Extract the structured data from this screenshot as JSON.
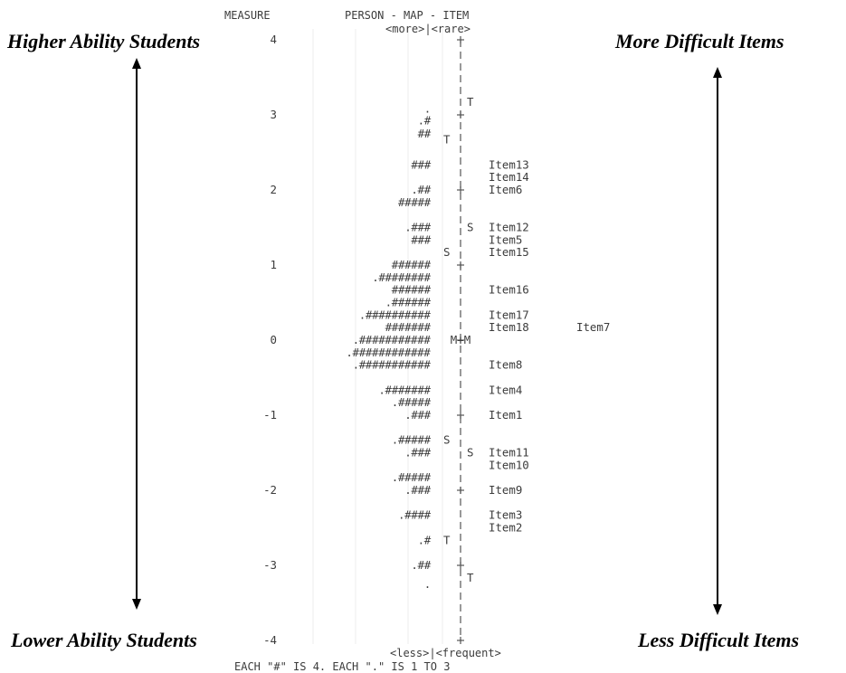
{
  "header": {
    "measure_label": "MEASURE",
    "map_title": "PERSON - MAP - ITEM",
    "more_rare": "<more>|<rare>"
  },
  "footer": {
    "less_frequent": "<less>|<frequent>",
    "note": "EACH \"#\" IS 4. EACH \".\" IS 1 TO 3"
  },
  "side_labels": {
    "higher_ability": "Higher Ability Students",
    "lower_ability": "Lower Ability Students",
    "more_difficult": "More Difficult Items",
    "less_difficult": "Less Difficult Items"
  },
  "chart_data": {
    "type": "wright-map",
    "measure_axis": {
      "ticks": [
        "4",
        "3",
        "2",
        "1",
        "0",
        "-1",
        "-2",
        "-3",
        "-4"
      ],
      "range": [
        -4,
        4
      ]
    },
    "persons": [
      {
        "measure": 3.08,
        "symbols": "."
      },
      {
        "measure": 2.92,
        "symbols": ".#"
      },
      {
        "measure": 2.75,
        "symbols": "##"
      },
      {
        "measure": 2.33,
        "symbols": "###"
      },
      {
        "measure": 2.0,
        "symbols": ".##"
      },
      {
        "measure": 1.83,
        "symbols": "#####"
      },
      {
        "measure": 1.5,
        "symbols": ".###"
      },
      {
        "measure": 1.33,
        "symbols": "###"
      },
      {
        "measure": 1.0,
        "symbols": "######"
      },
      {
        "measure": 0.83,
        "symbols": ".########"
      },
      {
        "measure": 0.67,
        "symbols": "######"
      },
      {
        "measure": 0.5,
        "symbols": ".######"
      },
      {
        "measure": 0.33,
        "symbols": ".##########"
      },
      {
        "measure": 0.17,
        "symbols": "#######"
      },
      {
        "measure": 0.0,
        "symbols": ".###########"
      },
      {
        "measure": -0.17,
        "symbols": ".############"
      },
      {
        "measure": -0.33,
        "symbols": ".###########"
      },
      {
        "measure": -0.67,
        "symbols": ".#######"
      },
      {
        "measure": -0.83,
        "symbols": ".#####"
      },
      {
        "measure": -1.0,
        "symbols": ".###"
      },
      {
        "measure": -1.33,
        "symbols": ".#####"
      },
      {
        "measure": -1.5,
        "symbols": ".###"
      },
      {
        "measure": -1.83,
        "symbols": ".#####"
      },
      {
        "measure": -2.0,
        "symbols": ".###"
      },
      {
        "measure": -2.33,
        "symbols": ".####"
      },
      {
        "measure": -2.67,
        "symbols": ".#"
      },
      {
        "measure": -3.0,
        "symbols": ".##"
      },
      {
        "measure": -3.25,
        "symbols": "."
      }
    ],
    "items": [
      {
        "measure": 2.33,
        "labels": [
          "Item13"
        ]
      },
      {
        "measure": 2.17,
        "labels": [
          "Item14"
        ]
      },
      {
        "measure": 2.0,
        "labels": [
          "Item6"
        ]
      },
      {
        "measure": 1.5,
        "labels": [
          "Item12"
        ]
      },
      {
        "measure": 1.33,
        "labels": [
          "Item5"
        ]
      },
      {
        "measure": 1.17,
        "labels": [
          "Item15"
        ]
      },
      {
        "measure": 0.67,
        "labels": [
          "Item16"
        ]
      },
      {
        "measure": 0.33,
        "labels": [
          "Item17"
        ]
      },
      {
        "measure": 0.17,
        "labels": [
          "Item18",
          "Item7"
        ]
      },
      {
        "measure": -0.33,
        "labels": [
          "Item8"
        ]
      },
      {
        "measure": -0.67,
        "labels": [
          "Item4"
        ]
      },
      {
        "measure": -1.0,
        "labels": [
          "Item1"
        ]
      },
      {
        "measure": -1.5,
        "labels": [
          "Item11"
        ]
      },
      {
        "measure": -1.67,
        "labels": [
          "Item10"
        ]
      },
      {
        "measure": -2.0,
        "labels": [
          "Item9"
        ]
      },
      {
        "measure": -2.33,
        "labels": [
          "Item3"
        ]
      },
      {
        "measure": -2.5,
        "labels": [
          "Item2"
        ]
      }
    ],
    "person_markers": [
      {
        "measure": 2.67,
        "label": "T"
      },
      {
        "measure": 1.17,
        "label": "S"
      },
      {
        "measure": -1.33,
        "label": "S"
      },
      {
        "measure": -2.67,
        "label": "T"
      }
    ],
    "item_markers": [
      {
        "measure": 3.17,
        "label": "T"
      },
      {
        "measure": 1.5,
        "label": "S"
      },
      {
        "measure": -1.5,
        "label": "S"
      },
      {
        "measure": -3.17,
        "label": "T"
      }
    ],
    "mean_marker": {
      "measure": 0.0,
      "label": "M+M"
    }
  }
}
